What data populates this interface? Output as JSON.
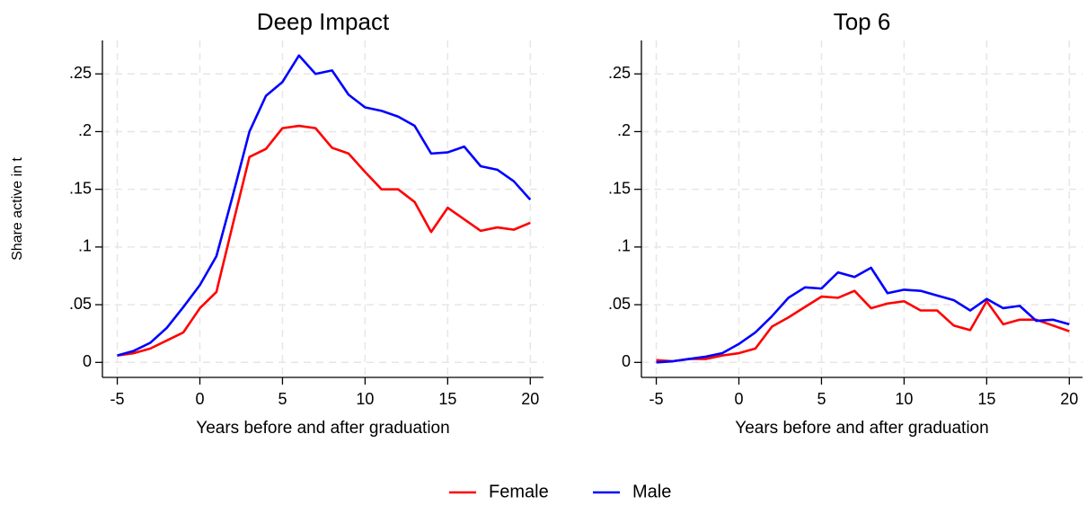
{
  "chart_data": [
    {
      "type": "line",
      "title": "Deep Impact",
      "y_label": "Share active in t",
      "x_label": "Years before and after graduation",
      "x": [
        -5,
        -4,
        -3,
        -2,
        -1,
        0,
        1,
        2,
        3,
        4,
        5,
        6,
        7,
        8,
        9,
        10,
        11,
        12,
        13,
        14,
        15,
        16,
        17,
        18,
        19,
        20
      ],
      "series": [
        {
          "name": "Female",
          "color": "#ff0000",
          "values": [
            0.006,
            0.008,
            0.012,
            0.019,
            0.026,
            0.047,
            0.061,
            0.12,
            0.178,
            0.185,
            0.203,
            0.205,
            0.203,
            0.186,
            0.181,
            0.165,
            0.15,
            0.15,
            0.139,
            0.113,
            0.134,
            0.124,
            0.114,
            0.117,
            0.115,
            0.121
          ]
        },
        {
          "name": "Male",
          "color": "#0000ff",
          "values": [
            0.006,
            0.01,
            0.017,
            0.03,
            0.048,
            0.067,
            0.092,
            0.145,
            0.2,
            0.231,
            0.243,
            0.266,
            0.25,
            0.253,
            0.232,
            0.221,
            0.218,
            0.213,
            0.205,
            0.181,
            0.182,
            0.187,
            0.17,
            0.167,
            0.157,
            0.141
          ]
        }
      ],
      "xlim": [
        -5.9,
        20.8
      ],
      "ylim": [
        -0.013,
        0.279
      ],
      "xticks": [
        -5,
        0,
        5,
        10,
        15,
        20
      ],
      "yticks": [
        0,
        {
          "value": 0.05,
          "label": ".05"
        },
        {
          "value": 0.1,
          "label": ".1"
        },
        {
          "value": 0.15,
          "label": ".15"
        },
        {
          "value": 0.2,
          "label": ".2"
        },
        {
          "value": 0.25,
          "label": ".25"
        }
      ],
      "grid": true
    },
    {
      "type": "line",
      "title": "Top 6",
      "x_label": "Years before and after graduation",
      "x": [
        -5,
        -4,
        -3,
        -2,
        -1,
        0,
        1,
        2,
        3,
        4,
        5,
        6,
        7,
        8,
        9,
        10,
        11,
        12,
        13,
        14,
        15,
        16,
        17,
        18,
        19,
        20
      ],
      "series": [
        {
          "color": "#ff0000",
          "values": [
            0.002,
            0.001,
            0.003,
            0.003,
            0.006,
            0.008,
            0.012,
            0.031,
            0.039,
            0.048,
            0.057,
            0.056,
            0.062,
            0.047,
            0.051,
            0.053,
            0.045,
            0.045,
            0.032,
            0.028,
            0.053,
            0.033,
            0.037,
            0.037,
            0.032,
            0.027
          ]
        },
        {
          "color": "#0000ff",
          "values": [
            0,
            0.001,
            0.003,
            0.005,
            0.008,
            0.016,
            0.026,
            0.04,
            0.056,
            0.065,
            0.064,
            0.078,
            0.074,
            0.082,
            0.06,
            0.063,
            0.062,
            0.058,
            0.054,
            0.045,
            0.055,
            0.047,
            0.049,
            0.036,
            0.037,
            0.033
          ]
        }
      ],
      "xlim": [
        -5.9,
        20.8
      ],
      "ylim": [
        -0.013,
        0.279
      ],
      "xticks": [
        -5,
        0,
        5,
        10,
        15,
        20
      ],
      "yticks": [
        0,
        {
          "value": 0.05,
          "label": ".05"
        },
        {
          "value": 0.1,
          "label": ".1"
        },
        {
          "value": 0.15,
          "label": ".15"
        },
        {
          "value": 0.2,
          "label": ".2"
        },
        {
          "value": 0.25,
          "label": ".25"
        }
      ],
      "grid": true
    }
  ]
}
